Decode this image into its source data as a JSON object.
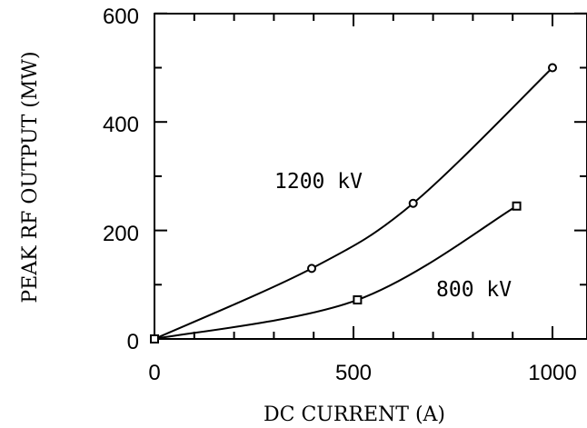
{
  "chart_data": {
    "type": "line",
    "xlabel": "DC CURRENT (A)",
    "ylabel": "PEAK RF OUTPUT (MW)",
    "xlim": [
      0,
      1000
    ],
    "ylim": [
      0,
      600
    ],
    "x_ticks": [
      "0",
      "500",
      "1000"
    ],
    "y_ticks": [
      "0",
      "200",
      "400",
      "600"
    ],
    "grid": false,
    "series": [
      {
        "name": "1200 kV",
        "marker": "circle",
        "x": [
          0,
          395,
          650,
          1000
        ],
        "y": [
          0,
          130,
          250,
          500
        ]
      },
      {
        "name": "800 kV",
        "marker": "square",
        "x": [
          0,
          510,
          910
        ],
        "y": [
          0,
          72,
          245
        ]
      }
    ]
  }
}
